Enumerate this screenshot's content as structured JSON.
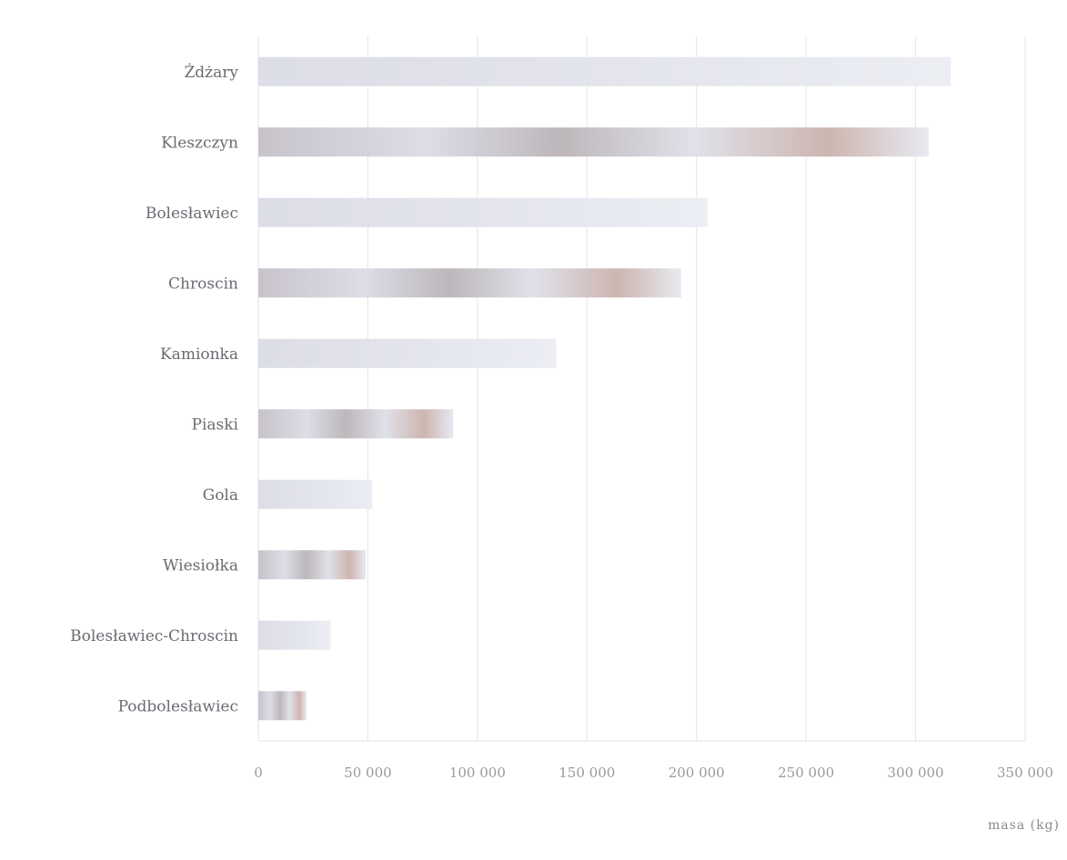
{
  "chart_data": {
    "type": "bar",
    "orientation": "horizontal",
    "categories": [
      "Żdżary",
      "Kleszczyn",
      "Bolesławiec",
      "Chroscin",
      "Kamionka",
      "Piaski",
      "Gola",
      "Wiesiołka",
      "Bolesławiec-Chroscin",
      "Podbolesławiec"
    ],
    "values": [
      316000,
      306000,
      205000,
      193000,
      136000,
      89000,
      52000,
      49000,
      33000,
      22000
    ],
    "xlabel": "masa (kg)",
    "ylabel": "",
    "xlim": [
      0,
      350000
    ],
    "xticks": [
      "0",
      "50 000",
      "100 000",
      "150 000",
      "200 000",
      "250 000",
      "300 000",
      "350 000"
    ],
    "grid": true,
    "legend": "none",
    "colors": {
      "bar_base": "#d2cfd8",
      "bar_light": "#e6e8ef",
      "bar_dark": "#b7b1b5",
      "bar_warm": "#c9aaa2",
      "grid": "#e4e4e8",
      "label": "#6c6a72",
      "tick": "#9a989c"
    }
  }
}
